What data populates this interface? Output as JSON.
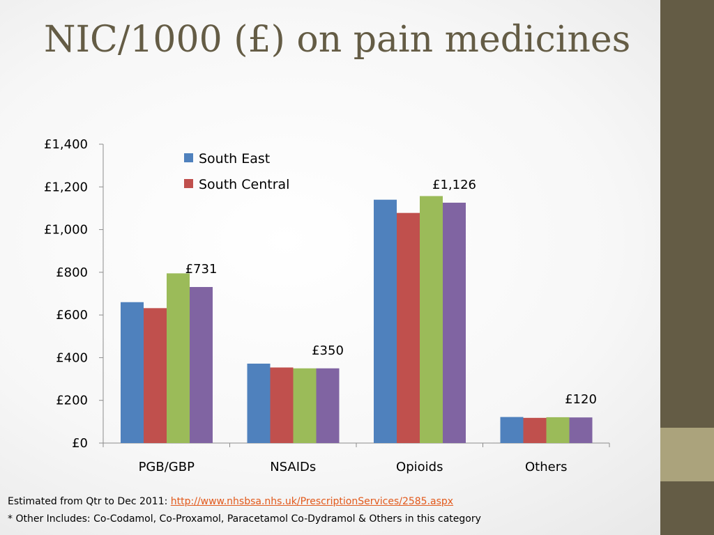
{
  "slide": {
    "title": "NIC/1000 (£) on pain medicines",
    "footnote1_prefix": "Estimated from Qtr to Dec 2011: ",
    "footnote1_link": "http://www.nhsbsa.nhs.uk/PrescriptionServices/2585.aspx",
    "footnote2": "* Other Includes: Co-Codamol, Co-Proxamol, Paracetamol Co-Dydramol & Others in this category",
    "colors": {
      "sidebar": "#645c45",
      "sidebar_accent": "#aba37c",
      "title": "#645c45",
      "link": "#e2591b"
    }
  },
  "chart_data": {
    "type": "bar",
    "categories": [
      "PGB/GBP",
      "NSAIDs",
      "Opioids",
      "Others"
    ],
    "series": [
      {
        "name": "South East",
        "color": "#4f81bd",
        "values": [
          660,
          372,
          1140,
          122
        ]
      },
      {
        "name": "South Central",
        "color": "#c0504d",
        "values": [
          632,
          354,
          1078,
          118
        ]
      },
      {
        "color": "#9bbb59",
        "values": [
          795,
          350,
          1157,
          121
        ]
      },
      {
        "color": "#8064a2",
        "values": [
          731,
          350,
          1126,
          120
        ]
      }
    ],
    "data_labels": [
      {
        "series": 3,
        "category": 0,
        "text": "£731"
      },
      {
        "series": 3,
        "category": 1,
        "text": "£350"
      },
      {
        "series": 3,
        "category": 2,
        "text": "£1,126"
      },
      {
        "series": 3,
        "category": 3,
        "text": "£120"
      }
    ],
    "y_ticks": [
      0,
      200,
      400,
      600,
      800,
      1000,
      1200,
      1400
    ],
    "y_tick_labels": [
      "£0",
      "£200",
      "£400",
      "£600",
      "£800",
      "£1,000",
      "£1,200",
      "£1,400"
    ],
    "ylim": [
      0,
      1400
    ],
    "grid": false,
    "legend_position": "top-center",
    "title": "",
    "xlabel": "",
    "ylabel": ""
  }
}
